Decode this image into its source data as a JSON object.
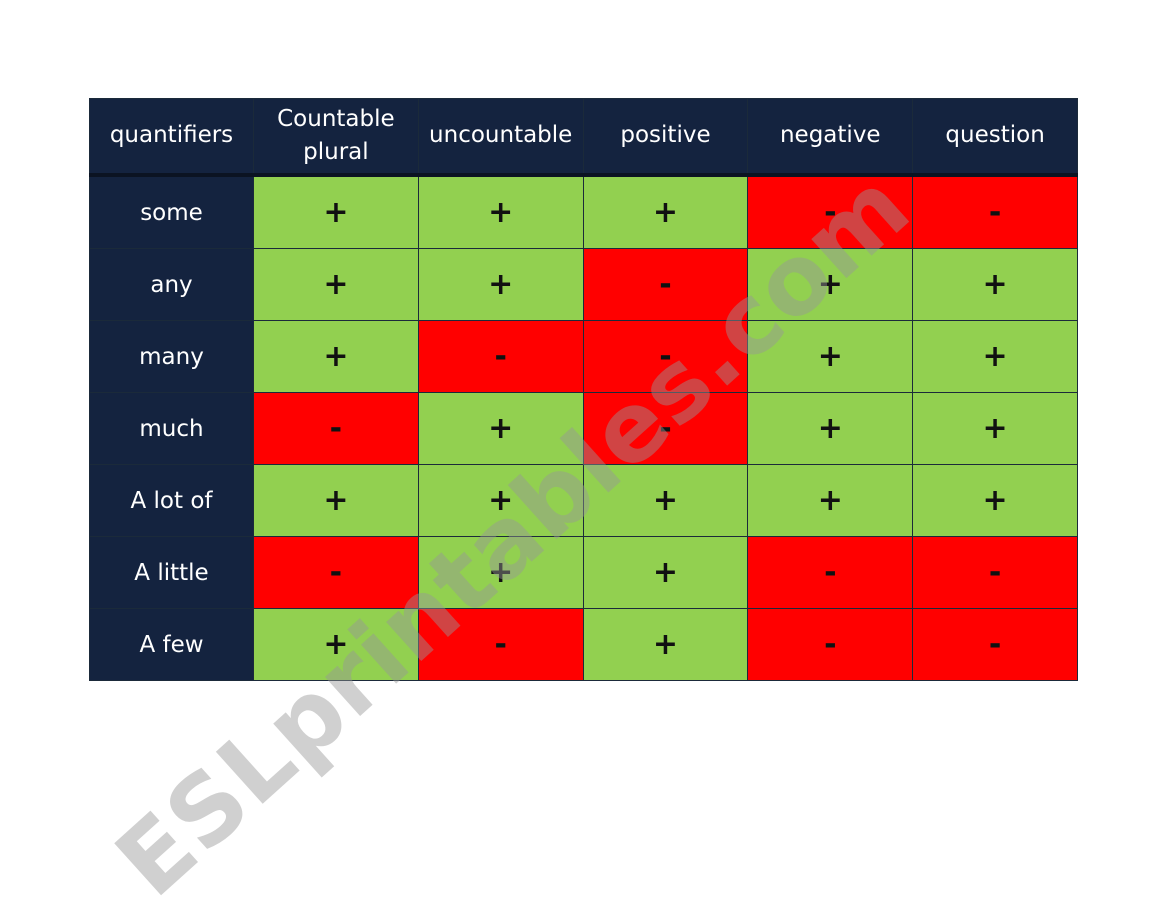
{
  "table": {
    "headers": [
      "quantifiers",
      "Countable\nplural",
      "uncountable",
      "positive",
      "negative",
      "question"
    ],
    "rows": [
      {
        "label": "some",
        "cells": [
          "+",
          "+",
          "+",
          "-",
          "-"
        ]
      },
      {
        "label": "any",
        "cells": [
          "+",
          "+",
          "-",
          "+",
          "+"
        ]
      },
      {
        "label": "many",
        "cells": [
          "+",
          "-",
          "-",
          "+",
          "+"
        ]
      },
      {
        "label": "much",
        "cells": [
          "-",
          "+",
          "-",
          "+",
          "+"
        ]
      },
      {
        "label": "A lot of",
        "cells": [
          "+",
          "+",
          "+",
          "+",
          "+"
        ]
      },
      {
        "label": "A little",
        "cells": [
          "-",
          "+",
          "+",
          "-",
          "-"
        ]
      },
      {
        "label": "A few",
        "cells": [
          "+",
          "-",
          "+",
          "-",
          "-"
        ]
      }
    ]
  },
  "colors": {
    "header_bg": "#14233f",
    "positive": "#92d050",
    "negative": "#ff0000"
  },
  "watermark": "ESLprintables.com"
}
